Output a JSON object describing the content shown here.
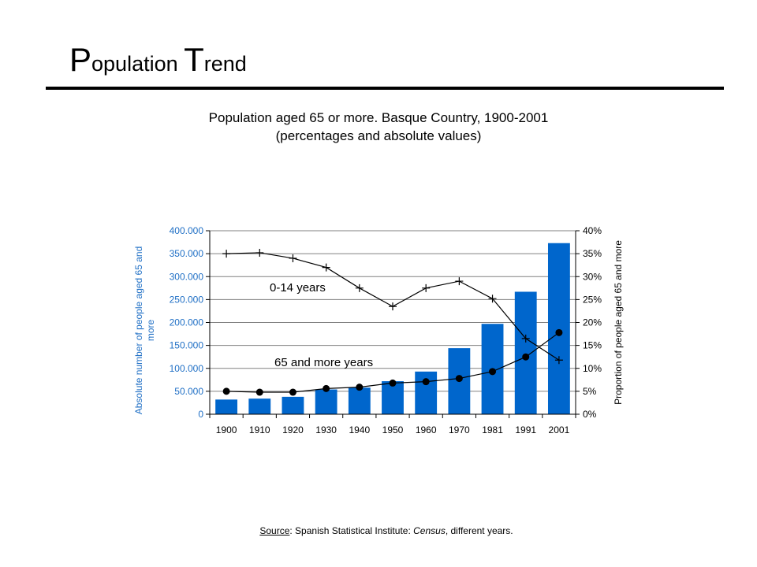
{
  "slide": {
    "title_cap1": "P",
    "title_rest1": "opulation ",
    "title_cap2": "T",
    "title_rest2": "rend"
  },
  "source": {
    "label": "Source",
    "text1": ": Spanish Statistical Institute: ",
    "italic": "Census",
    "text2": ", different years."
  },
  "colors": {
    "bars": "#0066CC",
    "left_axis_text": "#1F6FC5",
    "lines": "#000000",
    "grid": "#808080"
  },
  "chart_data": {
    "type": "bar",
    "title": "Population aged 65 or more. Basque Country, 1900-2001",
    "subtitle": "(percentages and absolute values)",
    "categories": [
      "1900",
      "1910",
      "1920",
      "1930",
      "1940",
      "1950",
      "1960",
      "1970",
      "1981",
      "1991",
      "2001"
    ],
    "ylabel": "Absolute number of people aged 65 and more",
    "y2label": "Proportion of people aged 65 and more",
    "ylim": [
      0,
      400000
    ],
    "y2lim": [
      0,
      40
    ],
    "yticks": [
      "0",
      "50.000",
      "100.000",
      "150.000",
      "200.000",
      "250.000",
      "300.000",
      "350.000",
      "400.000"
    ],
    "y2ticks": [
      "0%",
      "5%",
      "10%",
      "15%",
      "20%",
      "25%",
      "30%",
      "35%",
      "40%"
    ],
    "grid": true,
    "series": [
      {
        "type": "bar",
        "axis": "left",
        "values": [
          32000,
          34000,
          38000,
          54000,
          58000,
          72000,
          93000,
          144000,
          197000,
          267000,
          373000
        ]
      },
      {
        "type": "line",
        "axis": "right",
        "marker": "plus",
        "name": "0-14 years",
        "values": [
          35,
          35.2,
          34,
          32,
          27.5,
          23.5,
          27.5,
          29,
          25.2,
          16.5,
          11.8
        ]
      },
      {
        "type": "line",
        "axis": "right",
        "marker": "circle",
        "name": "65 and more years",
        "values": [
          5,
          4.8,
          4.8,
          5.6,
          5.9,
          6.8,
          7.1,
          7.8,
          9.3,
          12.5,
          17.8
        ]
      }
    ]
  }
}
